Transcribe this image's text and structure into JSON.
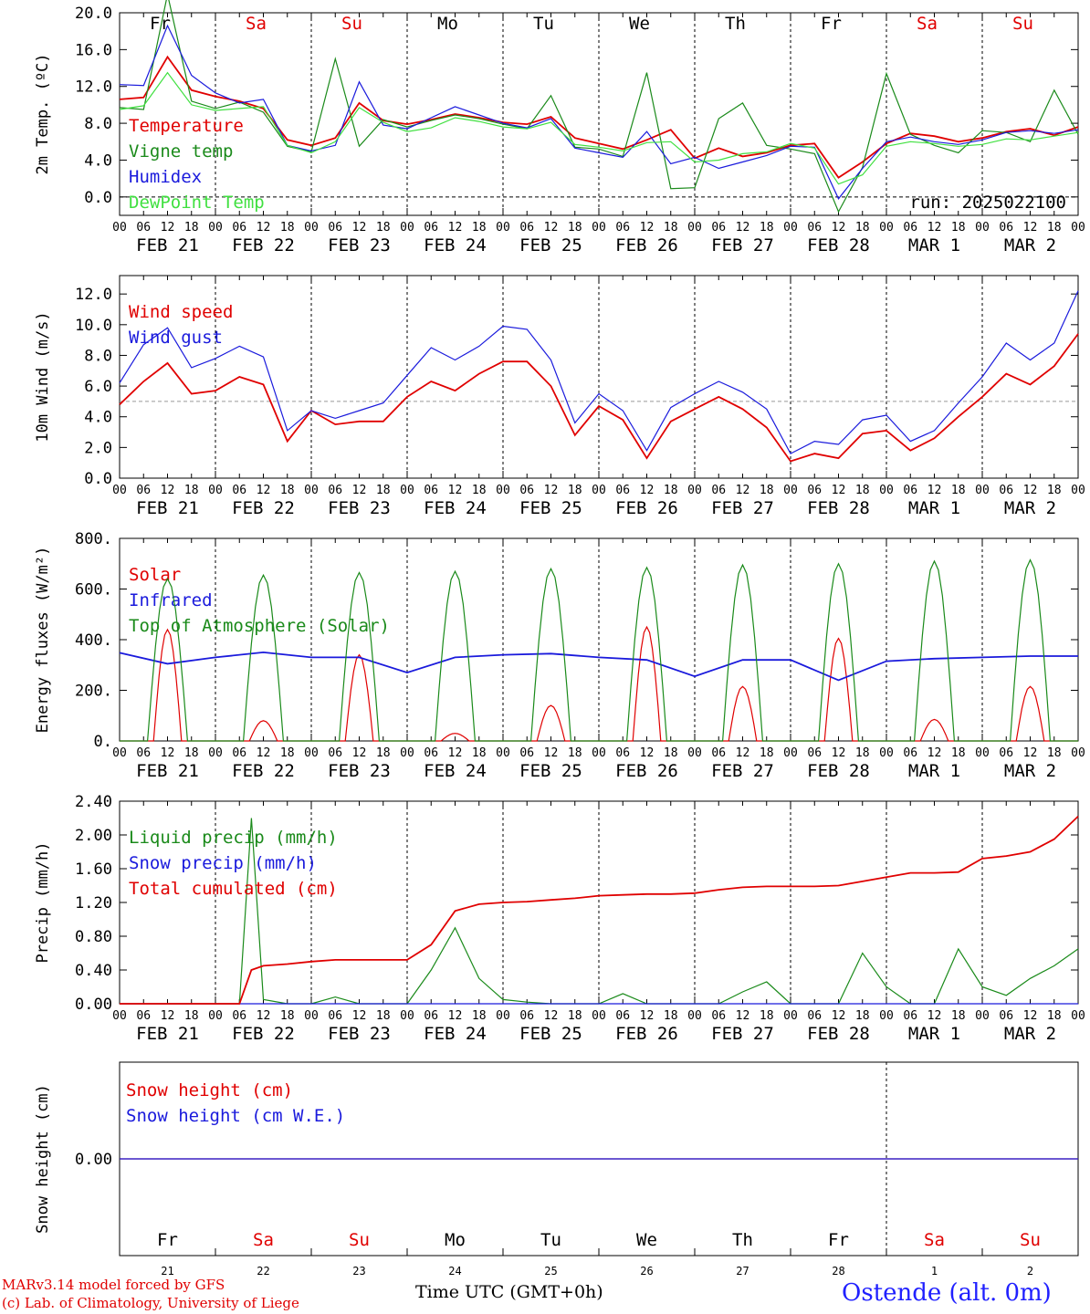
{
  "days": {
    "dates": [
      "FEB 21",
      "FEB 22",
      "FEB 23",
      "FEB 24",
      "FEB 25",
      "FEB 26",
      "FEB 27",
      "FEB 28",
      "MAR  1",
      "MAR  2"
    ],
    "weekdays": [
      "Fr",
      "Sa",
      "Su",
      "Mo",
      "Tu",
      "We",
      "Th",
      "Fr",
      "Sa",
      "Su"
    ],
    "weekday_colors": [
      "#000000",
      "#e00000",
      "#e00000",
      "#000000",
      "#000000",
      "#000000",
      "#000000",
      "#000000",
      "#e00000",
      "#e00000"
    ],
    "day_numbers": [
      "21",
      "22",
      "23",
      "24",
      "25",
      "26",
      "27",
      "28",
      "1",
      "2"
    ],
    "hour_ticks": [
      "00",
      "06",
      "12",
      "18"
    ],
    "end_tick": "00"
  },
  "chart_data": [
    {
      "id": "temperature",
      "type": "line",
      "ylabel": "2m Temp. (ºC)",
      "ylim": [
        -2,
        20
      ],
      "yticks": [
        "20.0",
        "16.0",
        "12.0",
        "8.0",
        "4.0",
        "0.0"
      ],
      "ytick_values": [
        20,
        16,
        12,
        8,
        4,
        0
      ],
      "reference_line": 0,
      "annotation": "run: 2025022100",
      "x_hours": [
        0,
        6,
        12,
        18,
        24,
        30,
        36,
        42,
        48,
        54,
        60,
        66,
        72,
        78,
        84,
        90,
        96,
        102,
        108,
        114,
        120,
        126,
        132,
        138,
        144,
        150,
        156,
        162,
        168,
        174,
        180,
        186,
        192,
        198,
        204,
        210,
        216,
        222,
        228,
        234,
        240
      ],
      "series": [
        {
          "name": "Temperature",
          "color": "#e00000",
          "values": [
            10.6,
            10.8,
            15.2,
            11.6,
            10.9,
            10.4,
            9.6,
            6.2,
            5.6,
            6.4,
            10.2,
            8.3,
            7.9,
            8.4,
            9.0,
            8.6,
            8.1,
            7.9,
            8.7,
            6.4,
            5.8,
            5.2,
            6.2,
            7.3,
            4.2,
            5.3,
            4.4,
            4.8,
            5.6,
            5.8,
            2.1,
            3.8,
            5.8,
            6.9,
            6.6,
            6.0,
            6.4,
            7.1,
            7.4,
            6.7,
            7.6
          ]
        },
        {
          "name": "Vigne temp",
          "color": "#1a8a1a",
          "values": [
            9.7,
            9.5,
            22.0,
            10.4,
            9.6,
            10.3,
            9.2,
            5.5,
            4.9,
            15.0,
            5.5,
            8.4,
            7.6,
            8.3,
            8.9,
            8.5,
            7.9,
            7.4,
            11.0,
            5.4,
            5.2,
            4.4,
            13.5,
            0.9,
            1.0,
            8.5,
            10.2,
            5.6,
            5.2,
            4.7,
            -1.6,
            3.2,
            13.4,
            6.8,
            5.6,
            4.8,
            7.2,
            7.0,
            6.0,
            11.6,
            6.8
          ]
        },
        {
          "name": "Humidex",
          "color": "#1a1adc",
          "values": [
            12.2,
            12.1,
            18.6,
            13.2,
            11.3,
            10.2,
            10.6,
            5.6,
            5.0,
            5.6,
            12.5,
            7.8,
            7.4,
            8.6,
            9.8,
            8.9,
            8.0,
            7.5,
            8.5,
            5.3,
            4.8,
            4.3,
            7.1,
            3.6,
            4.3,
            3.1,
            3.8,
            4.5,
            5.5,
            5.4,
            -0.2,
            3.1,
            6.0,
            6.5,
            6.0,
            5.7,
            6.2,
            7.0,
            7.2,
            6.9,
            7.3
          ]
        },
        {
          "name": "DewPoint Temp",
          "color": "#40e040",
          "values": [
            9.5,
            9.9,
            13.5,
            10.0,
            9.4,
            9.6,
            9.8,
            5.6,
            4.8,
            6.0,
            9.7,
            8.1,
            7.1,
            7.5,
            8.6,
            8.2,
            7.6,
            7.4,
            8.1,
            5.7,
            5.4,
            5.0,
            5.9,
            6.0,
            3.8,
            4.0,
            4.7,
            4.9,
            5.8,
            5.3,
            1.4,
            2.4,
            5.5,
            6.0,
            5.8,
            5.5,
            5.7,
            6.3,
            6.2,
            6.6,
            7.0
          ]
        }
      ]
    },
    {
      "id": "wind",
      "type": "line",
      "ylabel": "10m Wind (m/s)",
      "ylim": [
        0,
        13.2
      ],
      "yticks": [
        "12.0",
        "10.0",
        "8.0",
        "6.0",
        "4.0",
        "2.0",
        "0.0"
      ],
      "ytick_values": [
        12,
        10,
        8,
        6,
        4,
        2,
        0
      ],
      "reference_line": 5,
      "x_hours": [
        0,
        6,
        12,
        18,
        24,
        30,
        36,
        42,
        48,
        54,
        60,
        66,
        72,
        78,
        84,
        90,
        96,
        102,
        108,
        114,
        120,
        126,
        132,
        138,
        144,
        150,
        156,
        162,
        168,
        174,
        180,
        186,
        192,
        198,
        204,
        210,
        216,
        222,
        228,
        234,
        240
      ],
      "series": [
        {
          "name": "Wind speed",
          "color": "#e00000",
          "values": [
            4.8,
            6.3,
            7.5,
            5.5,
            5.7,
            6.6,
            6.1,
            2.4,
            4.4,
            3.5,
            3.7,
            3.7,
            5.3,
            6.3,
            5.7,
            6.8,
            7.6,
            7.6,
            6.0,
            2.8,
            4.7,
            3.8,
            1.3,
            3.7,
            4.5,
            5.3,
            4.5,
            3.3,
            1.1,
            1.6,
            1.3,
            2.9,
            3.1,
            1.8,
            2.6,
            4.0,
            5.3,
            6.8,
            6.1,
            7.3,
            9.4
          ]
        },
        {
          "name": "Wind gust",
          "color": "#1a1adc",
          "values": [
            6.2,
            8.7,
            9.8,
            7.2,
            7.8,
            8.6,
            7.9,
            3.1,
            4.4,
            3.9,
            4.4,
            4.9,
            6.7,
            8.5,
            7.7,
            8.6,
            9.9,
            9.7,
            7.7,
            3.6,
            5.5,
            4.4,
            1.8,
            4.6,
            5.5,
            6.3,
            5.6,
            4.5,
            1.6,
            2.4,
            2.2,
            3.8,
            4.1,
            2.4,
            3.1,
            4.9,
            6.6,
            8.8,
            7.7,
            8.8,
            12.2
          ]
        }
      ]
    },
    {
      "id": "energy",
      "type": "line",
      "ylabel": "Energy fluxes (W/m²)",
      "ylim": [
        0,
        800
      ],
      "yticks": [
        "800.",
        "600.",
        "400.",
        "200.",
        "0."
      ],
      "ytick_values": [
        800,
        600,
        400,
        200,
        0
      ],
      "series": [
        {
          "name": "Solar",
          "color": "#e00000",
          "peaks": [
            440,
            80,
            340,
            30,
            140,
            450,
            215,
            405,
            85,
            215
          ]
        },
        {
          "name": "Infrared",
          "color": "#1a1adc",
          "x_hours": [
            0,
            12,
            24,
            36,
            48,
            60,
            72,
            84,
            96,
            108,
            120,
            132,
            144,
            156,
            168,
            180,
            192,
            204,
            216,
            228,
            240
          ],
          "values": [
            348,
            305,
            330,
            350,
            330,
            330,
            270,
            330,
            340,
            345,
            330,
            320,
            255,
            320,
            320,
            240,
            315,
            325,
            330,
            335,
            335
          ]
        },
        {
          "name": "Top of Atmosphere (Solar)",
          "color": "#1a8a1a",
          "peaks": [
            640,
            655,
            665,
            670,
            680,
            685,
            695,
            700,
            710,
            715
          ]
        }
      ]
    },
    {
      "id": "precip",
      "type": "line",
      "ylabel": "Precip (mm/h)",
      "ylim": [
        0,
        2.4
      ],
      "yticks": [
        "2.40",
        "2.00",
        "1.60",
        "1.20",
        "0.80",
        "0.40",
        "0.00"
      ],
      "ytick_values": [
        2.4,
        2.0,
        1.6,
        1.2,
        0.8,
        0.4,
        0.0
      ],
      "x_hours": [
        0,
        6,
        12,
        18,
        24,
        30,
        33,
        36,
        42,
        48,
        54,
        60,
        66,
        72,
        78,
        84,
        90,
        96,
        102,
        108,
        114,
        120,
        126,
        132,
        138,
        144,
        150,
        156,
        162,
        168,
        174,
        180,
        186,
        192,
        198,
        204,
        210,
        216,
        222,
        228,
        234,
        240
      ],
      "series": [
        {
          "name": "Liquid precip (mm/h)",
          "color": "#1a8a1a",
          "values": [
            0,
            0,
            0,
            0,
            0,
            0,
            2.2,
            0.05,
            0,
            0,
            0.08,
            0,
            0,
            0,
            0.4,
            0.9,
            0.3,
            0.05,
            0.02,
            0,
            0,
            0,
            0.12,
            0,
            0,
            0,
            0,
            0.14,
            0.26,
            0,
            0,
            0,
            0.6,
            0.2,
            0,
            0,
            0.65,
            0.2,
            0.1,
            0.3,
            0.45,
            0.65
          ]
        },
        {
          "name": "Snow precip (mm/h)",
          "color": "#1a1adc",
          "values": [
            0,
            0,
            0,
            0,
            0,
            0,
            0,
            0,
            0,
            0,
            0,
            0,
            0,
            0,
            0,
            0,
            0,
            0,
            0,
            0,
            0,
            0,
            0,
            0,
            0,
            0,
            0,
            0,
            0,
            0,
            0,
            0,
            0,
            0,
            0,
            0,
            0,
            0,
            0,
            0,
            0,
            0
          ]
        },
        {
          "name": "Total cumulated (cm)",
          "color": "#e00000",
          "values": [
            0,
            0,
            0,
            0,
            0,
            0,
            0.4,
            0.45,
            0.47,
            0.5,
            0.52,
            0.52,
            0.52,
            0.52,
            0.7,
            1.1,
            1.18,
            1.2,
            1.21,
            1.23,
            1.25,
            1.28,
            1.29,
            1.3,
            1.3,
            1.31,
            1.35,
            1.38,
            1.39,
            1.39,
            1.39,
            1.4,
            1.45,
            1.5,
            1.55,
            1.55,
            1.56,
            1.72,
            1.75,
            1.8,
            1.95,
            2.22
          ]
        }
      ]
    },
    {
      "id": "snow",
      "type": "line",
      "ylabel": "Snow height (cm)",
      "yticks": [
        "0.00"
      ],
      "series": [
        {
          "name": "Snow height (cm)",
          "color": "#e00000",
          "values": [
            0,
            0
          ]
        },
        {
          "name": "Snow height (cm W.E.)",
          "color": "#1a1adc",
          "values": [
            0,
            0
          ]
        }
      ]
    }
  ],
  "footer": {
    "model": "MARv3.14 model forced by GFS",
    "lab": "(c) Lab. of Climatology, University of Liege",
    "time_label": "Time UTC (GMT+0h)",
    "station": "Ostende (alt. 0m)"
  }
}
